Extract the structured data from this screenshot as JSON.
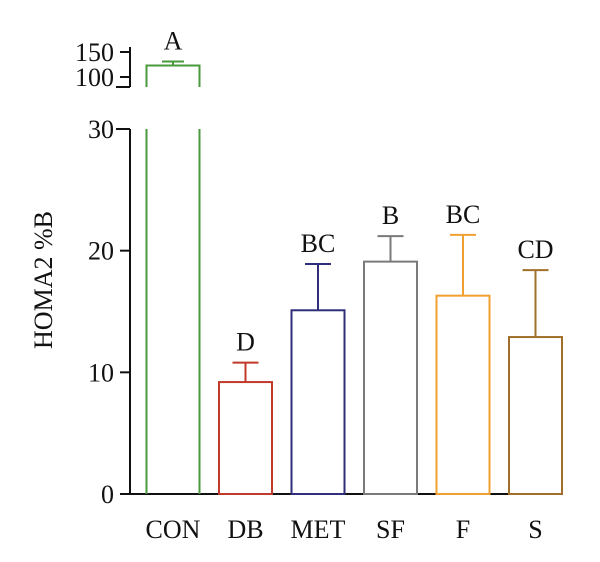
{
  "chart_data": {
    "type": "bar",
    "title": "",
    "xlabel": "",
    "ylabel": "HOMA2 %B",
    "categories": [
      "CON",
      "DB",
      "MET",
      "SF",
      "F",
      "S"
    ],
    "values": [
      123,
      9.2,
      15.1,
      19.1,
      16.3,
      12.9
    ],
    "error_plus": [
      8,
      1.6,
      3.8,
      2.1,
      5.0,
      5.5
    ],
    "letters": [
      "A",
      "D",
      "BC",
      "B",
      "BC",
      "CD"
    ],
    "colors": [
      "#4a9a3c",
      "#c0392b",
      "#2e2e7a",
      "#7a7a7a",
      "#f0a030",
      "#a0702a"
    ],
    "fill": "none",
    "ylim_lower": [
      0,
      30
    ],
    "yticks_lower": [
      0,
      10,
      20,
      30
    ],
    "ylim_upper": [
      80,
      160
    ],
    "yticks_upper": [
      100,
      150
    ],
    "axis_break": true,
    "grid": false,
    "legend": "none"
  }
}
